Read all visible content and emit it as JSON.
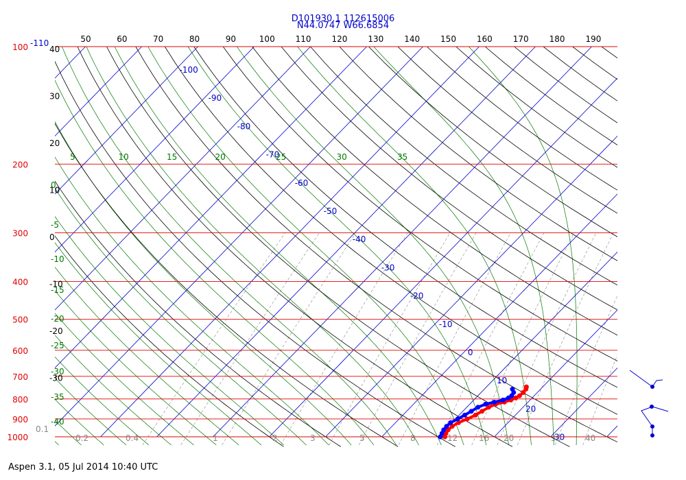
{
  "header": {
    "line1": "D101930.1 112615006",
    "line2": "N44.0747 W66.6854"
  },
  "footer": "Aspen 3.1, 05 Jul 2014  10:40 UTC",
  "colors": {
    "isobar": "#e00000",
    "isotherm": "#0000cc",
    "dry_adiabat": "#000000",
    "moist_adiabat": "#007700",
    "mixing_ratio": "#888888",
    "temperature_trace": "#ff0000",
    "dewpoint_trace": "#0000ff"
  },
  "chart_data": {
    "type": "skew-t",
    "pressure_levels": [
      "100",
      "200",
      "300",
      "400",
      "500",
      "600",
      "700",
      "800",
      "900",
      "1000"
    ],
    "isotherm_labels": [
      "-110",
      "-100",
      "-90",
      "-80",
      "-70",
      "-60",
      "-50",
      "-40",
      "-30",
      "-20",
      "-10",
      "0",
      "10",
      "20",
      "30"
    ],
    "theta_top_labels": [
      "50",
      "60",
      "70",
      "80",
      "90",
      "100",
      "110",
      "120",
      "130",
      "140",
      "150",
      "160",
      "170",
      "180",
      "190"
    ],
    "left_dry_labels": [
      "40",
      "30",
      "20",
      "10",
      "0",
      "-10",
      "-20",
      "-30"
    ],
    "moist_top_labels": [
      "5",
      "10",
      "15",
      "20",
      "25",
      "30",
      "35"
    ],
    "moist_left_labels": [
      "0",
      "-5",
      "-10",
      "-15",
      "-20",
      "-25",
      "-30",
      "-35",
      "-40"
    ],
    "mixing_ratio_labels": [
      "0.1",
      "0.2",
      "0.4",
      "1",
      "2",
      "3",
      "5",
      "8",
      "12",
      "16",
      "20",
      "30",
      "40"
    ],
    "temperature": [
      {
        "p": 1000,
        "t": 11.2
      },
      {
        "p": 980,
        "t": 10.8
      },
      {
        "p": 960,
        "t": 10.6
      },
      {
        "p": 940,
        "t": 10.7
      },
      {
        "p": 920,
        "t": 11.2
      },
      {
        "p": 900,
        "t": 12.1
      },
      {
        "p": 880,
        "t": 12.9
      },
      {
        "p": 860,
        "t": 13.4
      },
      {
        "p": 840,
        "t": 13.9
      },
      {
        "p": 825,
        "t": 14.6
      },
      {
        "p": 815,
        "t": 15.8
      },
      {
        "p": 805,
        "t": 16.6
      },
      {
        "p": 795,
        "t": 17.1
      },
      {
        "p": 785,
        "t": 17.4
      },
      {
        "p": 770,
        "t": 17.5
      },
      {
        "p": 755,
        "t": 17.4
      },
      {
        "p": 745,
        "t": 17.1
      }
    ],
    "dewpoint": [
      {
        "p": 1000,
        "t": 10.4
      },
      {
        "p": 980,
        "t": 10.1
      },
      {
        "p": 960,
        "t": 9.8
      },
      {
        "p": 940,
        "t": 9.7
      },
      {
        "p": 920,
        "t": 9.8
      },
      {
        "p": 900,
        "t": 10.4
      },
      {
        "p": 880,
        "t": 11.0
      },
      {
        "p": 860,
        "t": 11.5
      },
      {
        "p": 840,
        "t": 12.0
      },
      {
        "p": 825,
        "t": 12.8
      },
      {
        "p": 815,
        "t": 14.0
      },
      {
        "p": 805,
        "t": 15.2
      },
      {
        "p": 795,
        "t": 15.8
      },
      {
        "p": 785,
        "t": 16.0
      },
      {
        "p": 770,
        "t": 15.8
      },
      {
        "p": 755,
        "t": 15.0
      }
    ]
  }
}
